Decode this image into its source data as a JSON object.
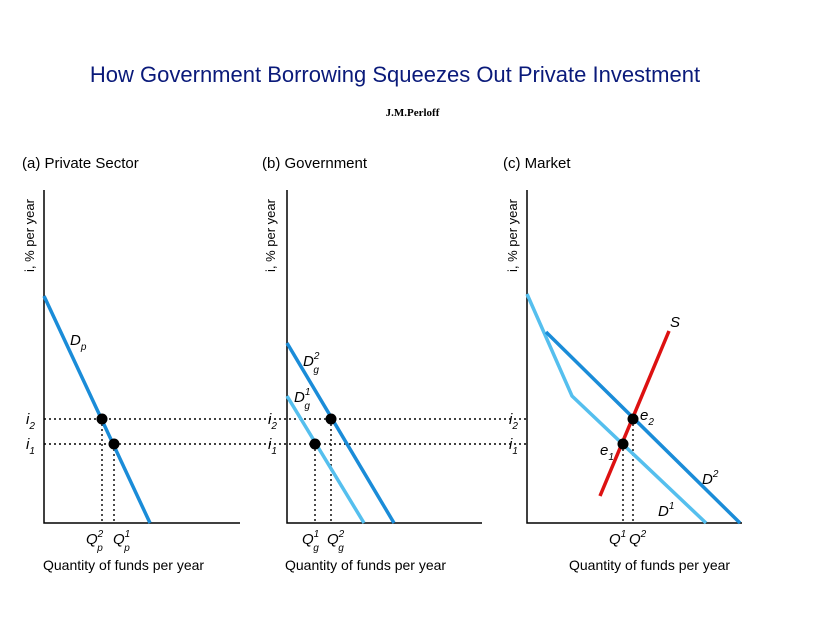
{
  "title": "How Government Borrowing  Squeezes Out Private Investment",
  "author": "J.M.Perloff",
  "colors": {
    "light_blue": "#55bfee",
    "dark_blue": "#1a8cd8",
    "supply_red": "#dd1111",
    "title_blue": "#0a1a7a"
  },
  "chart_data": [
    {
      "type": "line",
      "title": "(a) Private Sector",
      "ylabel": "i, % per year",
      "xlabel": "Quantity of funds per year",
      "y_ticks": [
        {
          "base": "i",
          "sub": "2"
        },
        {
          "base": "i",
          "sub": "1"
        }
      ],
      "x_ticks": [
        {
          "base": "Q",
          "sup": "2",
          "sub": "p"
        },
        {
          "base": "Q",
          "sup": "1",
          "sub": "p"
        }
      ],
      "series": [
        {
          "name": "Dp",
          "label_base": "D",
          "label_sub": "p",
          "color": "dark_blue"
        }
      ],
      "equilibria": [
        "i2 at Qp2",
        "i1 at Qp1"
      ]
    },
    {
      "type": "line",
      "title": "(b) Government",
      "ylabel": "i, % per year",
      "xlabel": "Quantity of funds per year",
      "y_ticks": [
        {
          "base": "i",
          "sub": "2"
        },
        {
          "base": "i",
          "sub": "1"
        }
      ],
      "x_ticks": [
        {
          "base": "Q",
          "sup": "1",
          "sub": "g"
        },
        {
          "base": "Q",
          "sup": "2",
          "sub": "g"
        }
      ],
      "series": [
        {
          "name": "Dg2",
          "label_base": "D",
          "label_sup": "2",
          "label_sub": "g",
          "color": "dark_blue"
        },
        {
          "name": "Dg1",
          "label_base": "D",
          "label_sup": "1",
          "label_sub": "g",
          "color": "light_blue"
        }
      ]
    },
    {
      "type": "line",
      "title": "(c) Market",
      "ylabel": "i, % per year",
      "xlabel": "Quantity of funds per year",
      "y_ticks": [
        {
          "base": "i",
          "sub": "2"
        },
        {
          "base": "i",
          "sub": "1"
        }
      ],
      "x_ticks": [
        {
          "base": "Q",
          "sup": "1"
        },
        {
          "base": "Q",
          "sup": "2"
        }
      ],
      "series": [
        {
          "name": "S",
          "label_base": "S",
          "color": "supply_red"
        },
        {
          "name": "D2",
          "label_base": "D",
          "label_sup": "2",
          "color": "dark_blue"
        },
        {
          "name": "D1",
          "label_base": "D",
          "label_sup": "1",
          "color": "light_blue"
        }
      ],
      "points": [
        {
          "base": "e",
          "sub": "2"
        },
        {
          "base": "e",
          "sub": "1"
        }
      ]
    }
  ]
}
